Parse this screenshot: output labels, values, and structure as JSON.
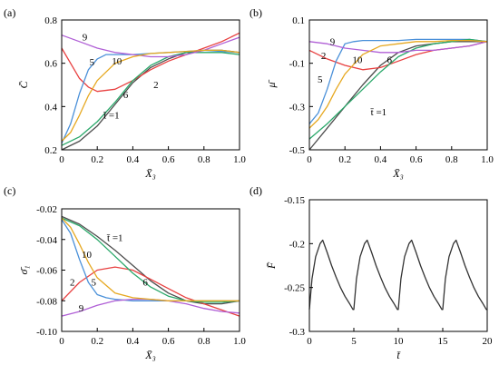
{
  "chart_data": [
    {
      "panel": "(a)",
      "type": "line",
      "xlabel": "X̄₃",
      "ylabel": "C̄",
      "xlim": [
        0,
        1
      ],
      "ylim": [
        0.2,
        0.8
      ],
      "xticks": [
        "0",
        "0.2",
        "0.4",
        "0.6",
        "0.8",
        "1.0"
      ],
      "yticks": [
        "0.2",
        "0.4",
        "0.6",
        "0.8"
      ],
      "series": [
        {
          "name": "t̄ =1",
          "color": "#4d4d4d",
          "x": [
            0,
            0.1,
            0.2,
            0.3,
            0.4,
            0.5,
            0.6,
            0.7,
            0.8,
            0.9,
            1.0
          ],
          "y": [
            0.2,
            0.24,
            0.31,
            0.41,
            0.51,
            0.58,
            0.62,
            0.65,
            0.66,
            0.66,
            0.65
          ]
        },
        {
          "name": "2",
          "color": "#e84040",
          "x": [
            0,
            0.05,
            0.1,
            0.15,
            0.2,
            0.3,
            0.4,
            0.5,
            0.6,
            0.7,
            0.8,
            0.9,
            1.0
          ],
          "y": [
            0.67,
            0.6,
            0.53,
            0.49,
            0.47,
            0.48,
            0.52,
            0.57,
            0.61,
            0.64,
            0.67,
            0.7,
            0.74
          ]
        },
        {
          "name": "5",
          "color": "#4a90d9",
          "x": [
            0,
            0.05,
            0.1,
            0.15,
            0.2,
            0.25,
            0.3,
            0.4,
            0.5,
            0.6,
            0.7,
            0.8,
            0.9,
            1.0
          ],
          "y": [
            0.23,
            0.32,
            0.46,
            0.57,
            0.62,
            0.64,
            0.64,
            0.64,
            0.645,
            0.65,
            0.655,
            0.66,
            0.655,
            0.65
          ]
        },
        {
          "name": "6",
          "color": "#2aa86a",
          "x": [
            0,
            0.1,
            0.2,
            0.3,
            0.4,
            0.5,
            0.6,
            0.7,
            0.8,
            0.9,
            1.0
          ],
          "y": [
            0.22,
            0.26,
            0.33,
            0.42,
            0.52,
            0.59,
            0.63,
            0.65,
            0.65,
            0.65,
            0.64
          ]
        },
        {
          "name": "9",
          "color": "#b05fd6",
          "x": [
            0,
            0.1,
            0.2,
            0.3,
            0.4,
            0.5,
            0.6,
            0.7,
            0.8,
            0.9,
            1.0
          ],
          "y": [
            0.73,
            0.7,
            0.67,
            0.65,
            0.64,
            0.63,
            0.63,
            0.64,
            0.66,
            0.69,
            0.72
          ]
        },
        {
          "name": "10",
          "color": "#e6a820",
          "x": [
            0,
            0.05,
            0.1,
            0.15,
            0.2,
            0.3,
            0.4,
            0.5,
            0.6,
            0.7,
            0.8,
            0.9,
            1.0
          ],
          "y": [
            0.24,
            0.28,
            0.36,
            0.45,
            0.52,
            0.6,
            0.63,
            0.645,
            0.65,
            0.655,
            0.66,
            0.66,
            0.65
          ]
        }
      ],
      "labels": [
        {
          "text": "9",
          "x": 0.13,
          "y": 0.705
        },
        {
          "text": "5",
          "x": 0.17,
          "y": 0.59
        },
        {
          "text": "10",
          "x": 0.31,
          "y": 0.595
        },
        {
          "text": "2",
          "x": 0.53,
          "y": 0.485
        },
        {
          "text": "6",
          "x": 0.36,
          "y": 0.44
        },
        {
          "text": "t̄ =1",
          "x": 0.28,
          "y": 0.345
        }
      ]
    },
    {
      "panel": "(b)",
      "type": "line",
      "xlabel": "X̄₃",
      "ylabel": "μ̄",
      "xlim": [
        0,
        1
      ],
      "ylim": [
        -0.5,
        0.1
      ],
      "xticks": [
        "0",
        "0.2",
        "0.4",
        "0.6",
        "0.8",
        "1.0"
      ],
      "yticks": [
        "-0.5",
        "-0.3",
        "-0.1",
        "0.1"
      ],
      "series": [
        {
          "name": "t̄ =1",
          "color": "#4d4d4d",
          "x": [
            0,
            0.1,
            0.2,
            0.3,
            0.4,
            0.5,
            0.6,
            0.7,
            0.8,
            0.9,
            1.0
          ],
          "y": [
            -0.5,
            -0.4,
            -0.3,
            -0.2,
            -0.11,
            -0.05,
            -0.02,
            -0.01,
            0.0,
            0.0,
            0.0
          ]
        },
        {
          "name": "2",
          "color": "#e84040",
          "x": [
            0,
            0.1,
            0.2,
            0.3,
            0.4,
            0.5,
            0.6,
            0.7,
            0.8,
            0.9,
            1.0
          ],
          "y": [
            -0.04,
            -0.08,
            -0.11,
            -0.13,
            -0.12,
            -0.09,
            -0.06,
            -0.04,
            -0.03,
            -0.02,
            0.0
          ]
        },
        {
          "name": "5",
          "color": "#4a90d9",
          "x": [
            0,
            0.05,
            0.1,
            0.15,
            0.2,
            0.25,
            0.3,
            0.4,
            0.5,
            0.6,
            0.7,
            0.8,
            0.9,
            1.0
          ],
          "y": [
            -0.38,
            -0.33,
            -0.22,
            -0.09,
            -0.01,
            0.0,
            0.005,
            0.005,
            0.005,
            0.01,
            0.01,
            0.01,
            0.01,
            0.0
          ]
        },
        {
          "name": "6",
          "color": "#2aa86a",
          "x": [
            0,
            0.1,
            0.2,
            0.3,
            0.4,
            0.5,
            0.6,
            0.7,
            0.8,
            0.9,
            1.0
          ],
          "y": [
            -0.45,
            -0.38,
            -0.3,
            -0.22,
            -0.14,
            -0.07,
            -0.03,
            -0.01,
            0.0,
            0.01,
            0.0
          ]
        },
        {
          "name": "9",
          "color": "#b05fd6",
          "x": [
            0,
            0.1,
            0.2,
            0.3,
            0.4,
            0.5,
            0.6,
            0.7,
            0.8,
            0.9,
            1.0
          ],
          "y": [
            0.0,
            -0.01,
            -0.03,
            -0.04,
            -0.05,
            -0.05,
            -0.04,
            -0.04,
            -0.03,
            -0.02,
            0.0
          ]
        },
        {
          "name": "10",
          "color": "#e6a820",
          "x": [
            0,
            0.05,
            0.1,
            0.15,
            0.2,
            0.3,
            0.4,
            0.5,
            0.6,
            0.7,
            0.8,
            0.9,
            1.0
          ],
          "y": [
            -0.4,
            -0.36,
            -0.3,
            -0.22,
            -0.15,
            -0.06,
            -0.02,
            -0.01,
            0.0,
            0.0,
            0.005,
            0.005,
            0.0
          ]
        }
      ],
      "labels": [
        {
          "text": "9",
          "x": 0.13,
          "y": -0.015
        },
        {
          "text": "2",
          "x": 0.08,
          "y": -0.08
        },
        {
          "text": "10",
          "x": 0.27,
          "y": -0.1
        },
        {
          "text": "6",
          "x": 0.45,
          "y": -0.1
        },
        {
          "text": "5",
          "x": 0.06,
          "y": -0.19
        },
        {
          "text": "t̄ =1",
          "x": 0.39,
          "y": -0.34
        }
      ]
    },
    {
      "panel": "(c)",
      "type": "line",
      "xlabel": "X̄₃",
      "ylabel": "σ̄₁",
      "xlim": [
        0,
        1
      ],
      "ylim": [
        -0.1,
        -0.02
      ],
      "xticks": [
        "0",
        "0.2",
        "0.4",
        "0.6",
        "0.8",
        "1.0"
      ],
      "yticks": [
        "-0.10",
        "-0.08",
        "-0.06",
        "-0.04",
        "-0.02"
      ],
      "series": [
        {
          "name": "t̄ =1",
          "color": "#4d4d4d",
          "x": [
            0,
            0.1,
            0.2,
            0.3,
            0.4,
            0.5,
            0.6,
            0.7,
            0.8,
            0.9,
            1.0
          ],
          "y": [
            -0.025,
            -0.03,
            -0.038,
            -0.047,
            -0.057,
            -0.067,
            -0.075,
            -0.08,
            -0.082,
            -0.082,
            -0.08
          ]
        },
        {
          "name": "2",
          "color": "#e84040",
          "x": [
            0,
            0.1,
            0.2,
            0.3,
            0.4,
            0.5,
            0.6,
            0.7,
            0.8,
            0.9,
            1.0
          ],
          "y": [
            -0.08,
            -0.068,
            -0.06,
            -0.058,
            -0.06,
            -0.066,
            -0.072,
            -0.078,
            -0.082,
            -0.086,
            -0.09
          ]
        },
        {
          "name": "5",
          "color": "#4a90d9",
          "x": [
            0,
            0.05,
            0.1,
            0.15,
            0.2,
            0.25,
            0.3,
            0.4,
            0.5,
            0.6,
            0.7,
            0.8,
            0.9,
            1.0
          ],
          "y": [
            -0.027,
            -0.036,
            -0.053,
            -0.068,
            -0.076,
            -0.078,
            -0.079,
            -0.08,
            -0.08,
            -0.08,
            -0.08,
            -0.08,
            -0.08,
            -0.08
          ]
        },
        {
          "name": "6",
          "color": "#2aa86a",
          "x": [
            0,
            0.1,
            0.2,
            0.3,
            0.4,
            0.5,
            0.6,
            0.7,
            0.8,
            0.9,
            1.0
          ],
          "y": [
            -0.026,
            -0.031,
            -0.04,
            -0.051,
            -0.062,
            -0.071,
            -0.077,
            -0.08,
            -0.081,
            -0.081,
            -0.08
          ]
        },
        {
          "name": "9",
          "color": "#b05fd6",
          "x": [
            0,
            0.1,
            0.2,
            0.3,
            0.4,
            0.5,
            0.6,
            0.7,
            0.8,
            0.9,
            1.0
          ],
          "y": [
            -0.09,
            -0.087,
            -0.083,
            -0.08,
            -0.079,
            -0.079,
            -0.08,
            -0.082,
            -0.085,
            -0.087,
            -0.088
          ]
        },
        {
          "name": "10",
          "color": "#e6a820",
          "x": [
            0,
            0.05,
            0.1,
            0.15,
            0.2,
            0.3,
            0.4,
            0.5,
            0.6,
            0.7,
            0.8,
            0.9,
            1.0
          ],
          "y": [
            -0.026,
            -0.032,
            -0.043,
            -0.055,
            -0.065,
            -0.075,
            -0.078,
            -0.079,
            -0.08,
            -0.08,
            -0.08,
            -0.08,
            -0.08
          ]
        }
      ],
      "labels": [
        {
          "text": "t̄ =1",
          "x": 0.3,
          "y": -0.041
        },
        {
          "text": "10",
          "x": 0.14,
          "y": -0.052
        },
        {
          "text": "2",
          "x": 0.06,
          "y": -0.07
        },
        {
          "text": "5",
          "x": 0.18,
          "y": -0.07
        },
        {
          "text": "6",
          "x": 0.47,
          "y": -0.07
        },
        {
          "text": "9",
          "x": 0.11,
          "y": -0.087
        }
      ]
    },
    {
      "panel": "(d)",
      "type": "line",
      "xlabel": "t̄",
      "ylabel": "F̄",
      "xlim": [
        0,
        20
      ],
      "ylim": [
        -0.3,
        -0.15
      ],
      "xticks": [
        "0",
        "5",
        "10",
        "15",
        "20"
      ],
      "yticks": [
        "-0.3",
        "-0.25",
        "-0.2",
        "-0.15"
      ],
      "series": [
        {
          "name": "",
          "color": "#333333",
          "x": [
            0,
            0.3,
            0.7,
            1.2,
            1.5,
            2.0,
            2.5,
            3.0,
            3.5,
            4.0,
            4.5,
            4.9,
            5.0,
            5.3,
            5.7,
            6.2,
            6.5,
            7.0,
            7.5,
            8.0,
            8.5,
            9.0,
            9.5,
            9.9,
            10.0,
            10.3,
            10.7,
            11.2,
            11.5,
            12.0,
            12.5,
            13.0,
            13.5,
            14.0,
            14.5,
            14.9,
            15.0,
            15.3,
            15.7,
            16.2,
            16.5,
            17.0,
            17.5,
            18.0,
            18.5,
            19.0,
            19.5,
            19.9,
            20.0
          ],
          "y": [
            -0.275,
            -0.24,
            -0.215,
            -0.2,
            -0.196,
            -0.21,
            -0.225,
            -0.238,
            -0.25,
            -0.26,
            -0.268,
            -0.275,
            -0.275,
            -0.24,
            -0.215,
            -0.2,
            -0.196,
            -0.21,
            -0.225,
            -0.238,
            -0.25,
            -0.26,
            -0.268,
            -0.275,
            -0.275,
            -0.24,
            -0.215,
            -0.2,
            -0.196,
            -0.21,
            -0.225,
            -0.238,
            -0.25,
            -0.26,
            -0.268,
            -0.275,
            -0.275,
            -0.24,
            -0.215,
            -0.2,
            -0.196,
            -0.21,
            -0.225,
            -0.238,
            -0.25,
            -0.26,
            -0.268,
            -0.275,
            -0.275
          ]
        }
      ],
      "labels": []
    }
  ],
  "colors": {
    "axis": "#000000",
    "background": "#ffffff"
  }
}
